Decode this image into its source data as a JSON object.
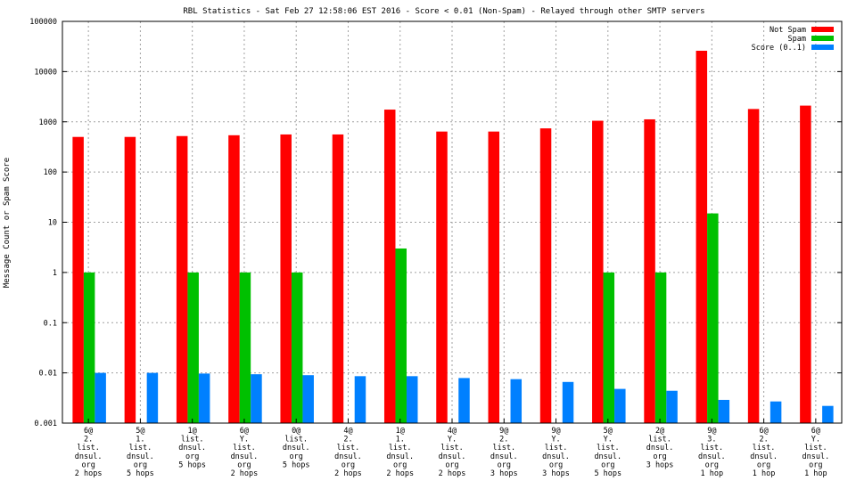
{
  "chart_data": {
    "type": "bar",
    "title": "RBL Statistics - Sat Feb 27 12:58:06 EST 2016 - Score < 0.01 (Non-Spam) - Relayed through other SMTP servers",
    "xlabel": "",
    "ylabel": "Message Count or Spam Score",
    "yscale": "log",
    "ylim": [
      0.001,
      100000
    ],
    "yticks": [
      "0.001",
      "0.01",
      "0.1",
      "1",
      "10",
      "100",
      "1000",
      "10000",
      "100000"
    ],
    "grid": true,
    "legend_position": "top-right",
    "categories": [
      [
        "6@",
        "2.",
        "list.",
        "dnsul.",
        "org",
        "2 hops"
      ],
      [
        "5@",
        "1.",
        "list.",
        "dnsul.",
        "org",
        "5 hops"
      ],
      [
        "1@",
        "list.",
        "dnsul.",
        "org",
        "5 hops"
      ],
      [
        "6@",
        "Y.",
        "list.",
        "dnsul.",
        "org",
        "2 hops"
      ],
      [
        "0@",
        "list.",
        "dnsul.",
        "org",
        "5 hops"
      ],
      [
        "4@",
        "2.",
        "list.",
        "dnsul.",
        "org",
        "2 hops"
      ],
      [
        "1@",
        "1.",
        "list.",
        "dnsul.",
        "org",
        "2 hops"
      ],
      [
        "4@",
        "Y.",
        "list.",
        "dnsul.",
        "org",
        "2 hops"
      ],
      [
        "9@",
        "2.",
        "list.",
        "dnsul.",
        "org",
        "3 hops"
      ],
      [
        "9@",
        "Y.",
        "list.",
        "dnsul.",
        "org",
        "3 hops"
      ],
      [
        "5@",
        "Y.",
        "list.",
        "dnsul.",
        "org",
        "5 hops"
      ],
      [
        "2@",
        "list.",
        "dnsul.",
        "org",
        "3 hops"
      ],
      [
        "9@",
        "3.",
        "list.",
        "dnsul.",
        "org",
        "1 hop"
      ],
      [
        "6@",
        "2.",
        "list.",
        "dnsul.",
        "org",
        "1 hop"
      ],
      [
        "6@",
        "Y.",
        "list.",
        "dnsul.",
        "org",
        "1 hop"
      ]
    ],
    "series": [
      {
        "name": "Not Spam",
        "color": "#ff0000",
        "values": [
          500,
          500,
          520,
          540,
          560,
          560,
          1750,
          640,
          640,
          740,
          1050,
          1120,
          26000,
          1800,
          2100
        ]
      },
      {
        "name": "Spam",
        "color": "#00c000",
        "values": [
          1,
          null,
          1,
          1,
          1,
          null,
          3,
          null,
          null,
          null,
          1,
          1,
          15,
          null,
          null
        ]
      },
      {
        "name": "Score (0..1)",
        "color": "#0080ff",
        "values": [
          0.01,
          0.01,
          0.0097,
          0.0094,
          0.009,
          0.0086,
          0.0086,
          0.0079,
          0.0075,
          0.0066,
          0.0048,
          0.0044,
          0.0029,
          0.0027,
          0.0022
        ]
      }
    ]
  }
}
